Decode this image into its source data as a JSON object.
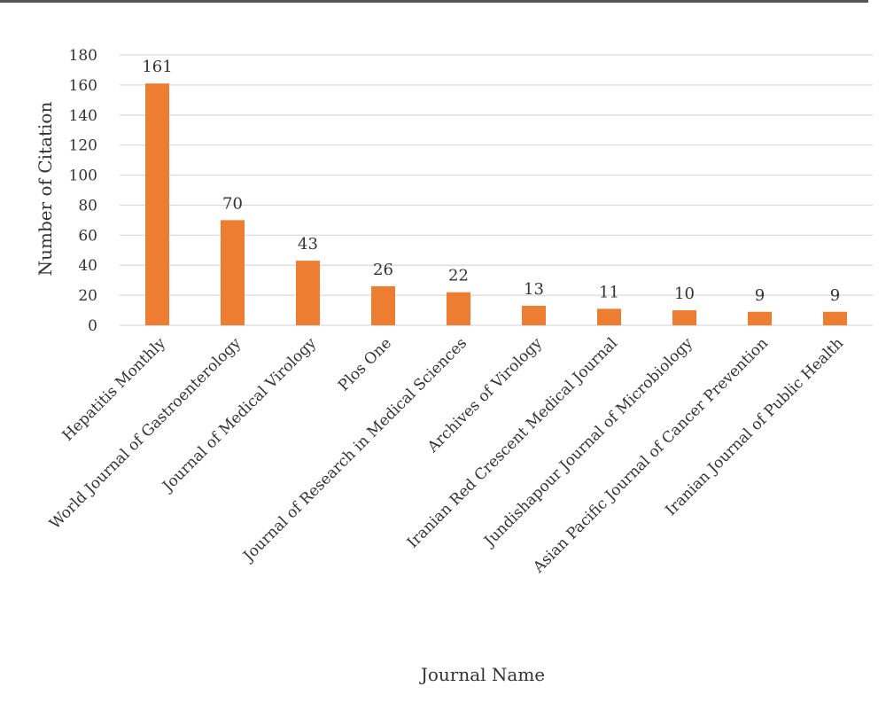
{
  "chart_data": {
    "type": "bar",
    "categories": [
      "Hepatitis Monthly",
      "World Journal of Gastroenterology",
      "Journal of Medical Virology",
      "Plos One",
      "Journal of Research in Medical Sciences",
      "Archives of Virology",
      "Iranian Red Crescent Medical Journal",
      "Jundishapour Journal of Microbiology",
      "Asian Pacific Journal of Cancer Prevention",
      "Iranian Journal of Public Health"
    ],
    "values": [
      161,
      70,
      43,
      26,
      22,
      13,
      11,
      10,
      9,
      9
    ],
    "data_labels": [
      "161",
      "70",
      "43",
      "26",
      "22",
      "13",
      "11",
      "10",
      "9",
      "9"
    ],
    "xlabel": "Journal Name",
    "ylabel": "Number of Citation",
    "ylim": [
      0,
      180
    ],
    "yticks": [
      "0",
      "20",
      "40",
      "60",
      "80",
      "100",
      "120",
      "140",
      "160",
      "180"
    ],
    "grid": true,
    "legend": "none",
    "bar_color": "#ED7D31",
    "grid_color": "#D9D9D9"
  }
}
